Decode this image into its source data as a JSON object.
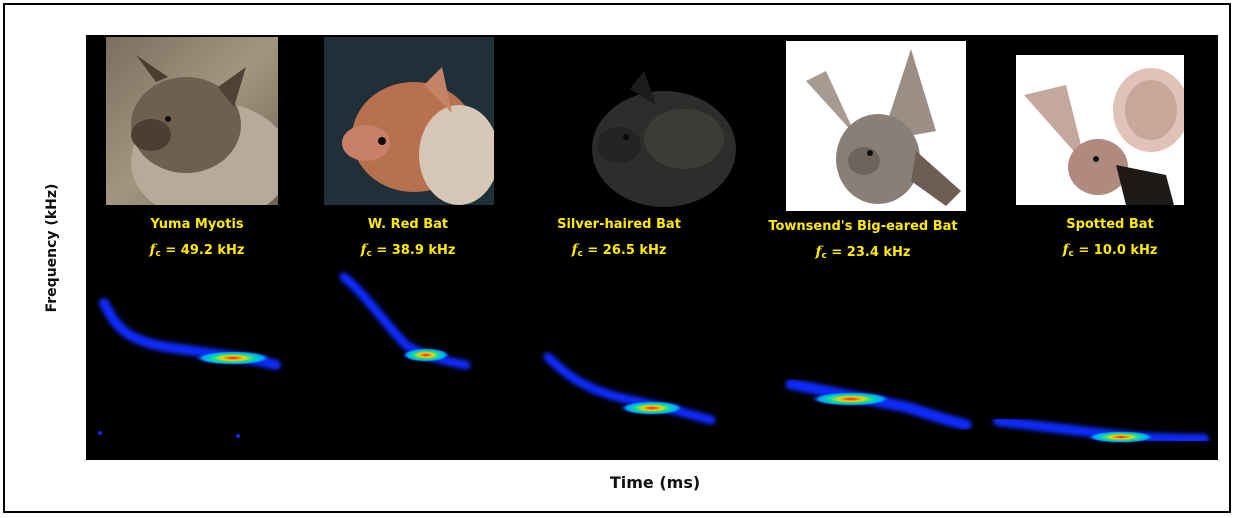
{
  "axes": {
    "ylabel": "Frequency (kHz)",
    "xlabel": "Time (ms)"
  },
  "fc_symbol": "f",
  "fc_subscript": "c",
  "bats": [
    {
      "name": "Yuma Myotis",
      "fc": "= 49.2 kHz",
      "fur_color": "#8a7a64"
    },
    {
      "name": "W. Red Bat",
      "fc": "= 38.9 kHz",
      "fur_color": "#b66a4c"
    },
    {
      "name": "Silver-haired Bat",
      "fc": "= 26.5 kHz",
      "fur_color": "#2c2c2a"
    },
    {
      "name": "Townsend's Big-eared Bat",
      "fc": "= 23.4 kHz",
      "fur_color": "#8a7f76"
    },
    {
      "name": "Spotted Bat",
      "fc": "= 10.0 kHz",
      "fur_color": "#b89a90"
    }
  ],
  "colors": {
    "caption": "#ffea00",
    "panel_background": "#000000",
    "spectrogram_low": "#0010d0",
    "spectrogram_mid": "#00c8ff",
    "spectrogram_high": "#ff1010"
  }
}
